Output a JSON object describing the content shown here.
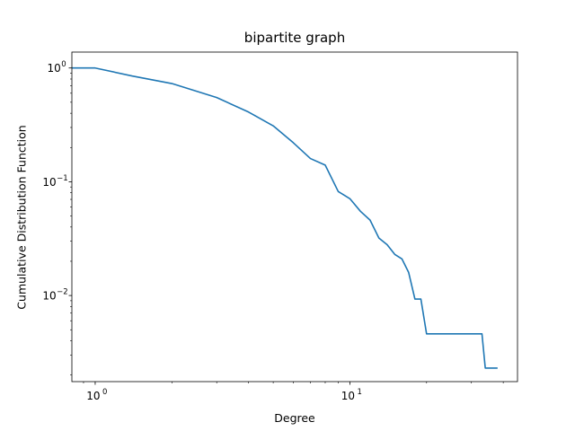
{
  "chart_data": {
    "type": "line",
    "title": "bipartite graph",
    "xlabel": "Degree",
    "ylabel": "Cumulative Distribution Function",
    "xscale": "log",
    "yscale": "log",
    "xlim": [
      0.81,
      45.5
    ],
    "ylim": [
      0.00175,
      1.38
    ],
    "grid": false,
    "color": "#1f77b4",
    "x_ticks": [
      {
        "value": 1,
        "base": "10",
        "exp": "0"
      },
      {
        "value": 10,
        "base": "10",
        "exp": "1"
      }
    ],
    "y_ticks": [
      {
        "value": 1,
        "base": "10",
        "exp": "0"
      },
      {
        "value": 0.1,
        "base": "10",
        "exp": "−1"
      },
      {
        "value": 0.01,
        "base": "10",
        "exp": "−2"
      }
    ],
    "series": [
      {
        "x": [
          0.81,
          1,
          1.4,
          2,
          3,
          4,
          5,
          6,
          7,
          8,
          9,
          10,
          11,
          12,
          13,
          14,
          15,
          16,
          17,
          18,
          19,
          20,
          33,
          34,
          38
        ],
        "y": [
          1.0,
          1.0,
          0.85,
          0.73,
          0.55,
          0.41,
          0.31,
          0.22,
          0.16,
          0.14,
          0.082,
          0.071,
          0.055,
          0.046,
          0.032,
          0.028,
          0.023,
          0.021,
          0.016,
          0.0093,
          0.0093,
          0.0046,
          0.0046,
          0.0023,
          0.0023
        ]
      }
    ]
  }
}
